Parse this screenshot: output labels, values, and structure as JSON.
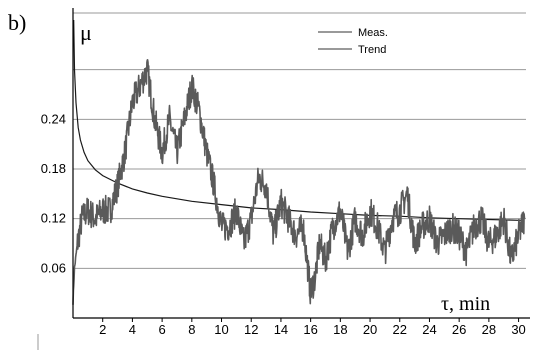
{
  "chart_data": {
    "type": "line",
    "panel_label": "b)",
    "ylabel": "μ",
    "xlabel": "τ, min",
    "xlim": [
      0,
      30.5
    ],
    "ylim": [
      0,
      0.36
    ],
    "x_ticks": [
      2,
      4,
      6,
      8,
      10,
      12,
      14,
      16,
      18,
      20,
      22,
      24,
      26,
      28,
      30
    ],
    "y_ticks": [
      0.06,
      0.12,
      0.18,
      0.24
    ],
    "y_tick_labels": [
      "0.06",
      "0.12",
      "0.18",
      "0.24"
    ],
    "grid": "horizontal",
    "legend_position": "top-right",
    "colors": {
      "meas": "#5a5a5a",
      "trend": "#1a1a1a",
      "grid": "#9a9a9a",
      "axis": "#000000"
    },
    "series": [
      {
        "name": "Meas.",
        "x": [
          0.0,
          0.1,
          0.3,
          0.6,
          1.0,
          1.5,
          2.0,
          2.5,
          3.0,
          3.5,
          4.0,
          4.5,
          5.0,
          5.5,
          6.0,
          6.5,
          7.0,
          7.5,
          8.0,
          8.5,
          9.0,
          9.5,
          10.0,
          10.5,
          11.0,
          11.5,
          12.0,
          12.5,
          13.0,
          13.5,
          14.0,
          14.5,
          15.0,
          15.5,
          16.0,
          16.3,
          16.6,
          17.0,
          17.5,
          18.0,
          18.5,
          19.0,
          19.5,
          20.0,
          20.5,
          21.0,
          21.5,
          22.0,
          22.5,
          23.0,
          23.5,
          24.0,
          24.5,
          25.0,
          25.5,
          26.0,
          26.5,
          27.0,
          27.5,
          28.0,
          28.5,
          29.0,
          29.5,
          30.0,
          30.4
        ],
        "y": [
          0.02,
          0.06,
          0.09,
          0.12,
          0.13,
          0.12,
          0.13,
          0.13,
          0.16,
          0.2,
          0.26,
          0.28,
          0.3,
          0.24,
          0.2,
          0.24,
          0.2,
          0.24,
          0.28,
          0.25,
          0.2,
          0.16,
          0.11,
          0.11,
          0.13,
          0.09,
          0.12,
          0.17,
          0.16,
          0.1,
          0.14,
          0.12,
          0.1,
          0.11,
          0.03,
          0.05,
          0.09,
          0.07,
          0.11,
          0.13,
          0.08,
          0.12,
          0.1,
          0.13,
          0.11,
          0.08,
          0.12,
          0.13,
          0.15,
          0.09,
          0.11,
          0.12,
          0.09,
          0.1,
          0.11,
          0.1,
          0.08,
          0.11,
          0.12,
          0.09,
          0.1,
          0.12,
          0.07,
          0.1,
          0.12
        ]
      },
      {
        "name": "Trend",
        "x": [
          0.05,
          0.1,
          0.2,
          0.35,
          0.5,
          0.75,
          1.0,
          1.5,
          2.0,
          3.0,
          4.0,
          5.0,
          6.0,
          8.0,
          10.0,
          12.0,
          14.0,
          16.0,
          18.0,
          20.0,
          22.0,
          24.0,
          26.0,
          28.0,
          30.0,
          30.4
        ],
        "y": [
          0.36,
          0.3,
          0.26,
          0.23,
          0.215,
          0.2,
          0.19,
          0.179,
          0.172,
          0.163,
          0.156,
          0.151,
          0.147,
          0.141,
          0.137,
          0.133,
          0.131,
          0.128,
          0.126,
          0.124,
          0.123,
          0.121,
          0.12,
          0.119,
          0.118,
          0.118
        ]
      }
    ]
  }
}
